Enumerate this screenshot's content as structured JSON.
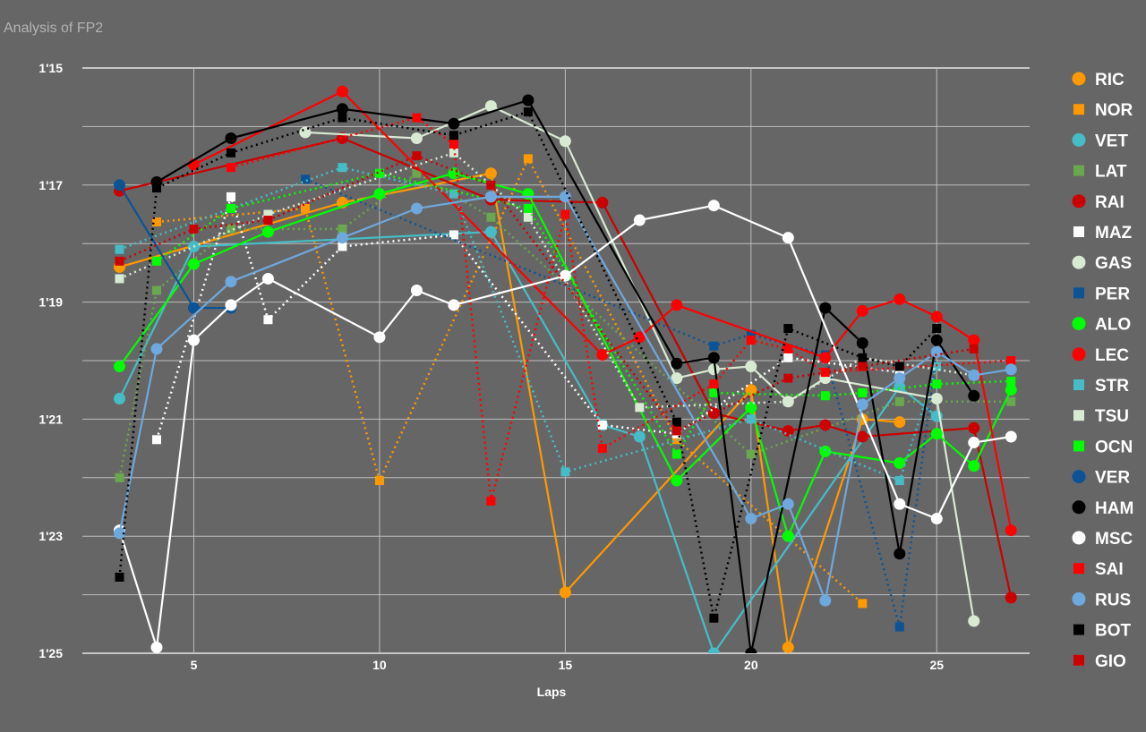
{
  "chart_data": {
    "type": "line",
    "title": "Analysis of FP2",
    "xlabel": "Laps",
    "ylabel": "",
    "xlim": [
      2.0,
      27.5
    ],
    "ylim": [
      75,
      85
    ],
    "ytick_values": [
      75,
      77,
      79,
      81,
      83,
      85
    ],
    "ytick_labels": [
      "1'15",
      "1'17",
      "1'19",
      "1'21",
      "1'23",
      "1'25"
    ],
    "xtick_values": [
      5,
      10,
      15,
      20,
      25
    ],
    "xtick_labels": [
      "5",
      "10",
      "15",
      "20",
      "25"
    ],
    "grid": true,
    "legend_position": "right",
    "series": [
      {
        "name": "RIC",
        "color": "#ff9900",
        "marker": "circle",
        "dash": false,
        "points": [
          [
            3,
            78.4
          ],
          [
            9,
            77.3
          ],
          [
            13,
            76.8
          ],
          [
            15,
            83.96
          ],
          [
            20,
            80.5
          ],
          [
            21,
            84.9
          ],
          [
            23,
            81.0
          ],
          [
            24,
            81.05
          ]
        ]
      },
      {
        "name": "NOR",
        "color": "#ff9900",
        "marker": "square",
        "dash": true,
        "points": [
          [
            4,
            77.63
          ],
          [
            8,
            77.4
          ],
          [
            10,
            82.05
          ],
          [
            14,
            76.55
          ],
          [
            18,
            81.35
          ],
          [
            23,
            84.15
          ]
        ]
      },
      {
        "name": "VET",
        "color": "#46bdc6",
        "marker": "circle",
        "dash": false,
        "points": [
          [
            3,
            80.65
          ],
          [
            5,
            78.05
          ],
          [
            13,
            77.8
          ],
          [
            16,
            81.1
          ],
          [
            17,
            81.3
          ],
          [
            19,
            85.0
          ],
          [
            24,
            80.45
          ],
          [
            25,
            80.95
          ]
        ]
      },
      {
        "name": "LAT",
        "color": "#6aa84f",
        "marker": "square",
        "dash": true,
        "points": [
          [
            3,
            82.0
          ],
          [
            4,
            78.8
          ],
          [
            6,
            77.75
          ],
          [
            9,
            77.75
          ],
          [
            11,
            76.8
          ],
          [
            13,
            77.55
          ],
          [
            20,
            81.6
          ],
          [
            24,
            80.7
          ],
          [
            27,
            80.7
          ]
        ]
      },
      {
        "name": "RAI",
        "color": "#cc0000",
        "marker": "circle",
        "dash": false,
        "points": [
          [
            3,
            77.1
          ],
          [
            9,
            76.2
          ],
          [
            13,
            77.25
          ],
          [
            16,
            77.3
          ],
          [
            19,
            80.9
          ],
          [
            21,
            81.2
          ],
          [
            22,
            81.1
          ],
          [
            23,
            81.3
          ],
          [
            26,
            81.15
          ],
          [
            27,
            84.05
          ]
        ]
      },
      {
        "name": "MAZ",
        "color": "#ffffff",
        "marker": "square",
        "dash": true,
        "points": [
          [
            4,
            81.35
          ],
          [
            6,
            77.2
          ],
          [
            7,
            79.3
          ],
          [
            9,
            78.05
          ],
          [
            12,
            77.85
          ],
          [
            16,
            81.1
          ],
          [
            18,
            81.25
          ],
          [
            21,
            79.95
          ],
          [
            24,
            80.2
          ]
        ]
      },
      {
        "name": "GAS",
        "color": "#d9ead3",
        "marker": "circle",
        "dash": false,
        "points": [
          [
            8,
            76.1
          ],
          [
            11,
            76.2
          ],
          [
            13,
            75.65
          ],
          [
            15,
            76.25
          ],
          [
            18,
            80.3
          ],
          [
            19,
            80.15
          ],
          [
            20,
            80.1
          ],
          [
            21,
            80.7
          ],
          [
            22,
            80.3
          ],
          [
            25,
            80.65
          ],
          [
            26,
            84.45
          ]
        ]
      },
      {
        "name": "PER",
        "color": "#0b5394",
        "marker": "square",
        "dash": true,
        "points": [
          [
            8,
            76.9
          ],
          [
            19,
            79.75
          ],
          [
            20,
            79.55
          ],
          [
            22,
            79.9
          ],
          [
            24,
            84.55
          ],
          [
            25,
            79.85
          ]
        ]
      },
      {
        "name": "ALO",
        "color": "#00ff00",
        "marker": "circle",
        "dash": false,
        "points": [
          [
            3,
            80.1
          ],
          [
            5,
            78.35
          ],
          [
            7,
            77.8
          ],
          [
            10,
            77.15
          ],
          [
            12,
            76.8
          ],
          [
            14,
            77.15
          ],
          [
            18,
            82.05
          ],
          [
            20,
            80.8
          ],
          [
            21,
            83.0
          ],
          [
            22,
            81.55
          ],
          [
            24,
            81.75
          ],
          [
            25,
            81.25
          ],
          [
            26,
            81.8
          ],
          [
            27,
            80.5
          ]
        ]
      },
      {
        "name": "LEC",
        "color": "#ff0000",
        "marker": "circle",
        "dash": false,
        "points": [
          [
            5,
            76.65
          ],
          [
            9,
            75.4
          ],
          [
            16,
            79.9
          ],
          [
            17,
            79.6
          ],
          [
            18,
            79.05
          ],
          [
            22,
            79.95
          ],
          [
            23,
            79.15
          ],
          [
            24,
            78.95
          ],
          [
            25,
            79.25
          ],
          [
            26,
            79.65
          ],
          [
            27,
            82.9
          ]
        ]
      },
      {
        "name": "STR",
        "color": "#46bdc6",
        "marker": "square",
        "dash": true,
        "points": [
          [
            3,
            78.1
          ],
          [
            9,
            76.7
          ],
          [
            12,
            77.15
          ],
          [
            15,
            81.9
          ],
          [
            20,
            81.0
          ],
          [
            24,
            82.05
          ],
          [
            25,
            80.1
          ]
        ]
      },
      {
        "name": "TSU",
        "color": "#d9ead3",
        "marker": "square",
        "dash": true,
        "points": [
          [
            3,
            78.6
          ],
          [
            7,
            77.5
          ],
          [
            12,
            76.45
          ],
          [
            14,
            77.55
          ],
          [
            17,
            80.8
          ],
          [
            21,
            80.7
          ],
          [
            23,
            79.95
          ],
          [
            26,
            80.25
          ]
        ]
      },
      {
        "name": "OCN",
        "color": "#00ff00",
        "marker": "square",
        "dash": true,
        "points": [
          [
            4,
            78.3
          ],
          [
            6,
            77.4
          ],
          [
            10,
            76.8
          ],
          [
            14,
            77.4
          ],
          [
            18,
            81.6
          ],
          [
            19,
            80.55
          ],
          [
            22,
            80.6
          ],
          [
            23,
            80.55
          ],
          [
            25,
            80.4
          ],
          [
            27,
            80.35
          ]
        ]
      },
      {
        "name": "VER",
        "color": "#0b5394",
        "marker": "circle",
        "dash": false,
        "points": [
          [
            3,
            77.0
          ],
          [
            5,
            79.1
          ],
          [
            6,
            79.1
          ]
        ]
      },
      {
        "name": "HAM",
        "color": "#000000",
        "marker": "circle",
        "dash": false,
        "points": [
          [
            4,
            76.95
          ],
          [
            6,
            76.2
          ],
          [
            9,
            75.7
          ],
          [
            12,
            75.95
          ],
          [
            14,
            75.55
          ],
          [
            18,
            80.05
          ],
          [
            19,
            79.95
          ],
          [
            20,
            85.0
          ],
          [
            22,
            79.1
          ],
          [
            23,
            79.7
          ],
          [
            24,
            83.3
          ],
          [
            25,
            79.65
          ],
          [
            26,
            80.6
          ]
        ]
      },
      {
        "name": "MSC",
        "color": "#ffffff",
        "marker": "circle",
        "dash": false,
        "points": [
          [
            3,
            82.9
          ],
          [
            4,
            84.9
          ],
          [
            5,
            79.65
          ],
          [
            6,
            79.05
          ],
          [
            7,
            78.6
          ],
          [
            10,
            79.6
          ],
          [
            11,
            78.8
          ],
          [
            12,
            79.05
          ],
          [
            15,
            78.55
          ],
          [
            17,
            77.6
          ],
          [
            19,
            77.35
          ],
          [
            21,
            77.9
          ],
          [
            24,
            82.45
          ],
          [
            25,
            82.7
          ],
          [
            26,
            81.4
          ],
          [
            27,
            81.3
          ]
        ]
      },
      {
        "name": "SAI",
        "color": "#ff0000",
        "marker": "square",
        "dash": true,
        "points": [
          [
            6,
            76.7
          ],
          [
            11,
            75.85
          ],
          [
            12,
            76.3
          ],
          [
            13,
            82.4
          ],
          [
            15,
            77.5
          ],
          [
            16,
            81.5
          ],
          [
            19,
            80.4
          ],
          [
            20,
            79.65
          ],
          [
            21,
            79.8
          ],
          [
            22,
            80.2
          ],
          [
            27,
            80.0
          ]
        ]
      },
      {
        "name": "RUS",
        "color": "#6fa8dc",
        "marker": "circle",
        "dash": false,
        "points": [
          [
            3,
            82.95
          ],
          [
            4,
            79.8
          ],
          [
            6,
            78.65
          ],
          [
            9,
            77.9
          ],
          [
            11,
            77.4
          ],
          [
            13,
            77.2
          ],
          [
            15,
            77.2
          ],
          [
            20,
            82.7
          ],
          [
            21,
            82.45
          ],
          [
            22,
            84.1
          ],
          [
            23,
            80.75
          ],
          [
            24,
            80.3
          ],
          [
            25,
            79.85
          ],
          [
            26,
            80.25
          ],
          [
            27,
            80.15
          ]
        ]
      },
      {
        "name": "BOT",
        "color": "#000000",
        "marker": "square",
        "dash": true,
        "points": [
          [
            3,
            83.7
          ],
          [
            4,
            77.05
          ],
          [
            6,
            76.45
          ],
          [
            9,
            75.85
          ],
          [
            12,
            76.15
          ],
          [
            14,
            75.75
          ],
          [
            18,
            81.05
          ],
          [
            19,
            84.4
          ],
          [
            21,
            79.45
          ],
          [
            23,
            79.95
          ],
          [
            24,
            80.1
          ],
          [
            25,
            79.45
          ]
        ]
      },
      {
        "name": "GIO",
        "color": "#cc0000",
        "marker": "square",
        "dash": true,
        "points": [
          [
            3,
            78.3
          ],
          [
            5,
            77.75
          ],
          [
            7,
            77.6
          ],
          [
            11,
            76.5
          ],
          [
            13,
            77.0
          ],
          [
            18,
            81.2
          ],
          [
            21,
            80.3
          ],
          [
            23,
            80.1
          ],
          [
            26,
            79.8
          ]
        ]
      }
    ]
  }
}
